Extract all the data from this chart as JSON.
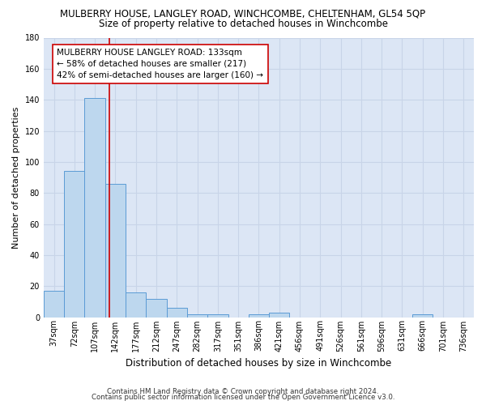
{
  "title": "MULBERRY HOUSE, LANGLEY ROAD, WINCHCOMBE, CHELTENHAM, GL54 5QP",
  "subtitle": "Size of property relative to detached houses in Winchcombe",
  "xlabel": "Distribution of detached houses by size in Winchcombe",
  "ylabel": "Number of detached properties",
  "footer_line1": "Contains HM Land Registry data © Crown copyright and database right 2024.",
  "footer_line2": "Contains public sector information licensed under the Open Government Licence v3.0.",
  "categories": [
    "37sqm",
    "72sqm",
    "107sqm",
    "142sqm",
    "177sqm",
    "212sqm",
    "247sqm",
    "282sqm",
    "317sqm",
    "351sqm",
    "386sqm",
    "421sqm",
    "456sqm",
    "491sqm",
    "526sqm",
    "561sqm",
    "596sqm",
    "631sqm",
    "666sqm",
    "701sqm",
    "736sqm"
  ],
  "values": [
    17,
    94,
    141,
    86,
    16,
    12,
    6,
    2,
    2,
    0,
    2,
    3,
    0,
    0,
    0,
    0,
    0,
    0,
    2,
    0,
    0
  ],
  "bar_color": "#bdd7ee",
  "bar_edge_color": "#5b9bd5",
  "bar_edge_width": 0.7,
  "grid_color": "#c8d4e8",
  "background_color": "#dce6f5",
  "ylim": [
    0,
    180
  ],
  "yticks": [
    0,
    20,
    40,
    60,
    80,
    100,
    120,
    140,
    160,
    180
  ],
  "annotation_text": "MULBERRY HOUSE LANGLEY ROAD: 133sqm\n← 58% of detached houses are smaller (217)\n42% of semi-detached houses are larger (160) →",
  "red_line_x": 2.72,
  "annotation_box_color": "#ffffff",
  "annotation_box_edge": "#cc0000",
  "title_fontsize": 8.5,
  "subtitle_fontsize": 8.5,
  "ylabel_fontsize": 8,
  "xlabel_fontsize": 8.5,
  "tick_fontsize": 7,
  "annot_fontsize": 7.5,
  "footer_fontsize": 6.2
}
